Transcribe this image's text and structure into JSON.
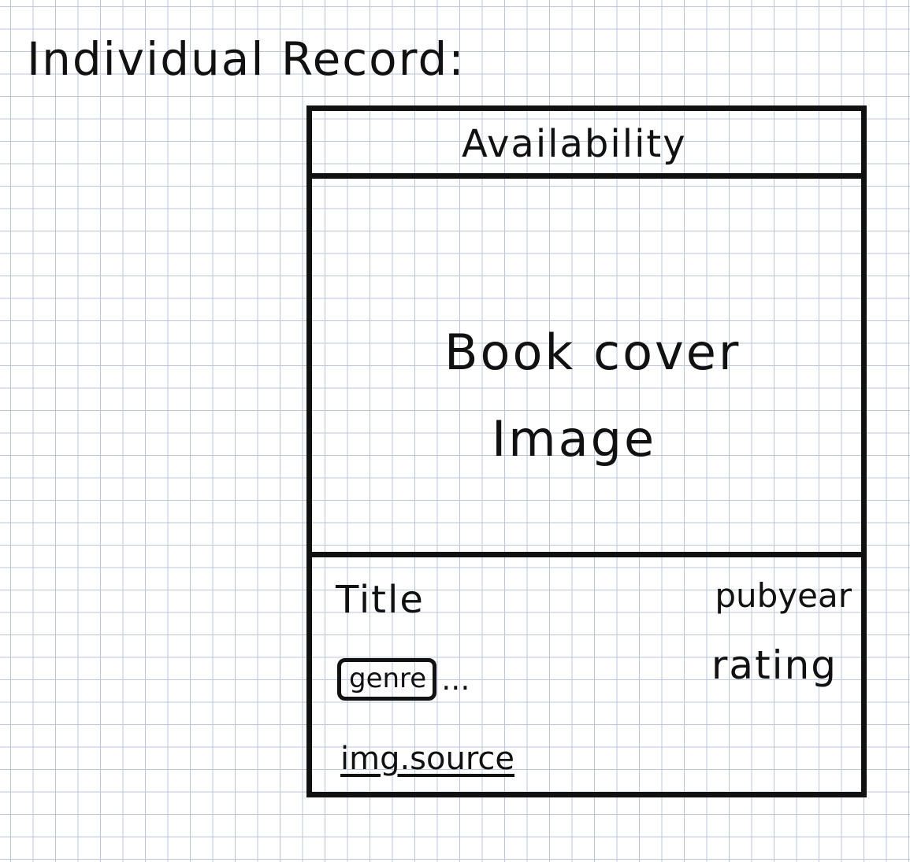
{
  "heading": "Individual Record:",
  "record": {
    "availability": "Availability",
    "cover_line1": "Book cover",
    "cover_line2": "Image",
    "title": "Title",
    "pubyear": "pubyear",
    "genre": "genre",
    "genre_more": "...",
    "rating": "rating",
    "img_source": "img.source"
  }
}
